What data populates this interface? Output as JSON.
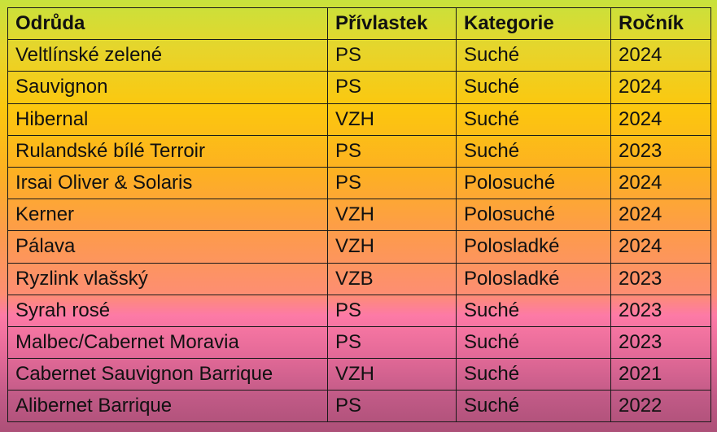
{
  "table": {
    "headers": [
      "Odrůda",
      "Přívlastek",
      "Kategorie",
      "Ročník"
    ],
    "rows": [
      [
        "Veltlínské zelené",
        "PS",
        "Suché",
        "2024"
      ],
      [
        "Sauvignon",
        "PS",
        "Suché",
        "2024"
      ],
      [
        "Hibernal",
        "VZH",
        "Suché",
        "2024"
      ],
      [
        "Rulandské bílé Terroir",
        "PS",
        "Suché",
        "2023"
      ],
      [
        "Irsai Oliver & Solaris",
        "PS",
        "Polosuché",
        "2024"
      ],
      [
        "Kerner",
        "VZH",
        "Polosuché",
        "2024"
      ],
      [
        "Pálava",
        "VZH",
        "Polosladké",
        "2024"
      ],
      [
        "Ryzlink vlašský",
        "VZB",
        "Polosladké",
        "2023"
      ],
      [
        "Syrah rosé",
        "PS",
        "Suché",
        "2023"
      ],
      [
        "Malbec/Cabernet Moravia",
        "PS",
        "Suché",
        "2023"
      ],
      [
        "Cabernet Sauvignon Barrique",
        "VZH",
        "Suché",
        "2021"
      ],
      [
        "Alibernet Barrique",
        "PS",
        "Suché",
        "2022"
      ]
    ]
  }
}
